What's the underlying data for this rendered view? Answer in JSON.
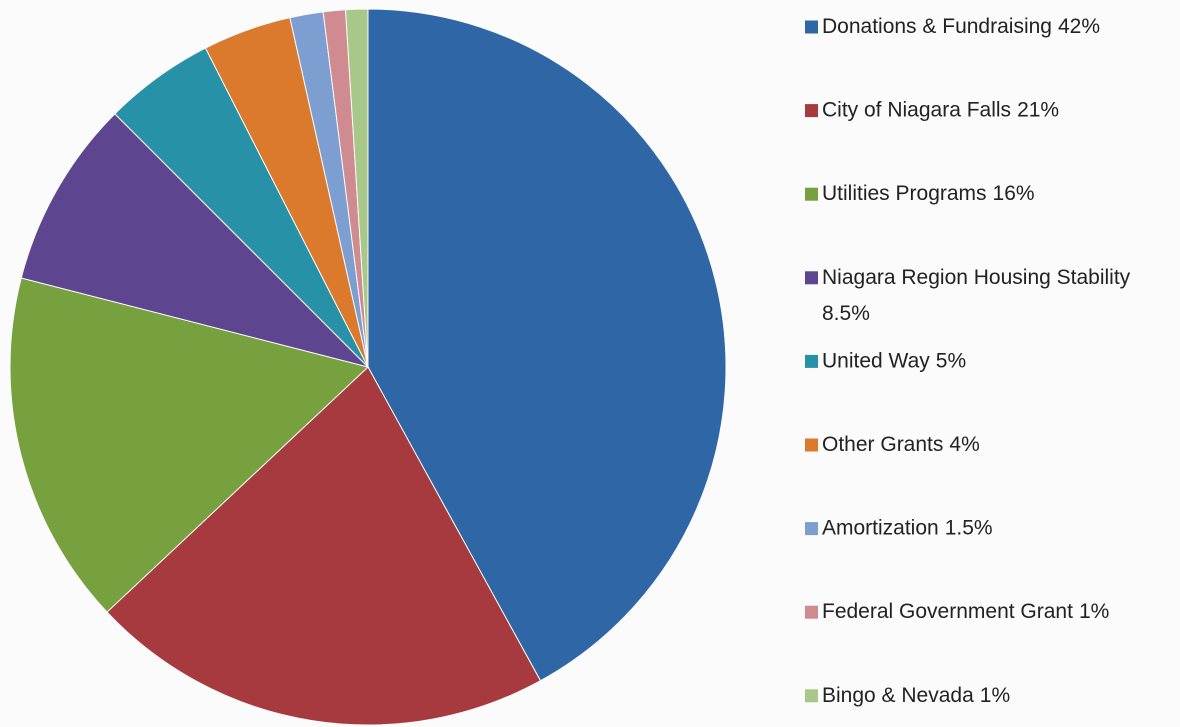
{
  "chart_data": {
    "type": "pie",
    "categories": [
      "Donations & Fundraising",
      "City of Niagara Falls",
      "Utilities Programs",
      "Niagara Region Housing Stability",
      "United Way",
      "Other Grants",
      "Amortization",
      "Federal Government Grant",
      "Bingo & Nevada"
    ],
    "values": [
      42,
      21,
      16,
      8.5,
      5,
      4,
      1.5,
      1,
      1
    ],
    "value_labels": [
      "42%",
      "21%",
      "16%",
      "8.5%",
      "5%",
      "4%",
      "1.5%",
      "1%",
      "1%"
    ],
    "colors": [
      "#2e66a6",
      "#a63a3f",
      "#77a13e",
      "#5e4590",
      "#2791a7",
      "#db7a2c",
      "#7c9ed0",
      "#cf8b8f",
      "#a8c889"
    ],
    "legend": "right"
  }
}
